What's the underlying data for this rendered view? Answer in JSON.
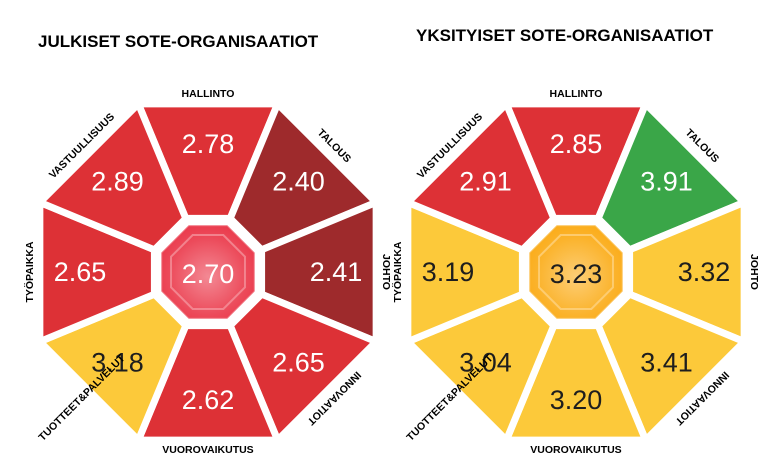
{
  "colors": {
    "red": "#dd3136",
    "dark_red": "#9e2a2c",
    "yellow": "#fcc93a",
    "green": "#3aa648",
    "center_red": "#ec4a5a",
    "center_yellow": "#fbb32c"
  },
  "panels": [
    {
      "title": "JULKISET SOTE-ORGANISAATIOT",
      "center": {
        "value": "2.70",
        "color": "center_red"
      },
      "segments": [
        {
          "category": "HALLINTO",
          "value": "2.78",
          "color": "red"
        },
        {
          "category": "TALOUS",
          "value": "2.40",
          "color": "dark_red"
        },
        {
          "category": "JOHTO",
          "value": "2.41",
          "color": "dark_red"
        },
        {
          "category": "INNOVAATIOT",
          "value": "2.65",
          "color": "red"
        },
        {
          "category": "VUOROVAIKUTUS",
          "value": "2.62",
          "color": "red"
        },
        {
          "category": "TUOTTEET&PALVELUT",
          "value": "3.18",
          "color": "yellow"
        },
        {
          "category": "TYÖPAIKKA",
          "value": "2.65",
          "color": "red"
        },
        {
          "category": "VASTUULLISUUS",
          "value": "2.89",
          "color": "red"
        }
      ]
    },
    {
      "title": "YKSITYISET SOTE-ORGANISAATIOT",
      "center": {
        "value": "3.23",
        "color": "center_yellow"
      },
      "segments": [
        {
          "category": "HALLINTO",
          "value": "2.85",
          "color": "red"
        },
        {
          "category": "TALOUS",
          "value": "3.91",
          "color": "green"
        },
        {
          "category": "JOHTO",
          "value": "3.32",
          "color": "yellow"
        },
        {
          "category": "INNOVAATIOT",
          "value": "3.41",
          "color": "yellow"
        },
        {
          "category": "VUOROVAIKUTUS",
          "value": "3.20",
          "color": "yellow"
        },
        {
          "category": "TUOTTEET&PALVELUT",
          "value": "3.04",
          "color": "yellow"
        },
        {
          "category": "TYÖPAIKKA",
          "value": "3.19",
          "color": "yellow"
        },
        {
          "category": "VASTUULLISUUS",
          "value": "2.91",
          "color": "red"
        }
      ]
    }
  ]
}
